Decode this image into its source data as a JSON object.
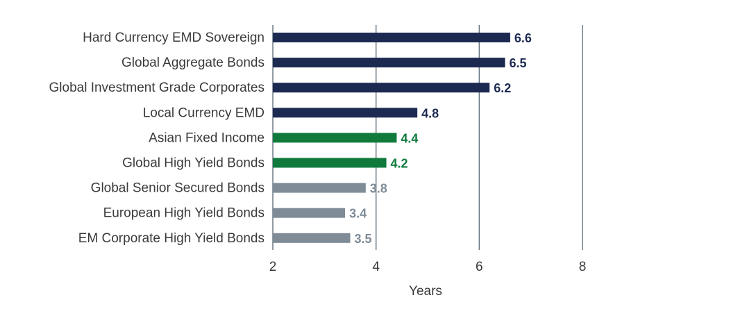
{
  "chart_data": {
    "type": "bar",
    "orientation": "horizontal",
    "categories": [
      "Hard Currency EMD Sovereign",
      "Global Aggregate Bonds",
      "Global Investment Grade Corporates",
      "Local Currency EMD",
      "Asian Fixed Income",
      "Global High Yield Bonds",
      "Global Senior Secured Bonds",
      "European High Yield Bonds",
      "EM Corporate High Yield Bonds"
    ],
    "values": [
      6.6,
      6.5,
      6.2,
      4.8,
      4.4,
      4.2,
      3.8,
      3.4,
      3.5
    ],
    "value_labels": [
      "6.6",
      "6.5",
      "6.2",
      "4.8",
      "4.4",
      "4.2",
      "3.8",
      "3.4",
      "3.5"
    ],
    "bar_colors": [
      "#1c2a52",
      "#1c2a52",
      "#1c2a52",
      "#1c2a52",
      "#0f7a3c",
      "#0f7a3c",
      "#7f8c97",
      "#7f8c97",
      "#7f8c97"
    ],
    "xlim": [
      2,
      8
    ],
    "xticks": [
      2,
      4,
      6,
      8
    ],
    "xtick_labels": [
      "2",
      "4",
      "6",
      "8"
    ],
    "xlabel": "Years",
    "grid": "vertical",
    "grid_color": "#6b7a86",
    "title": "",
    "ylabel": ""
  }
}
